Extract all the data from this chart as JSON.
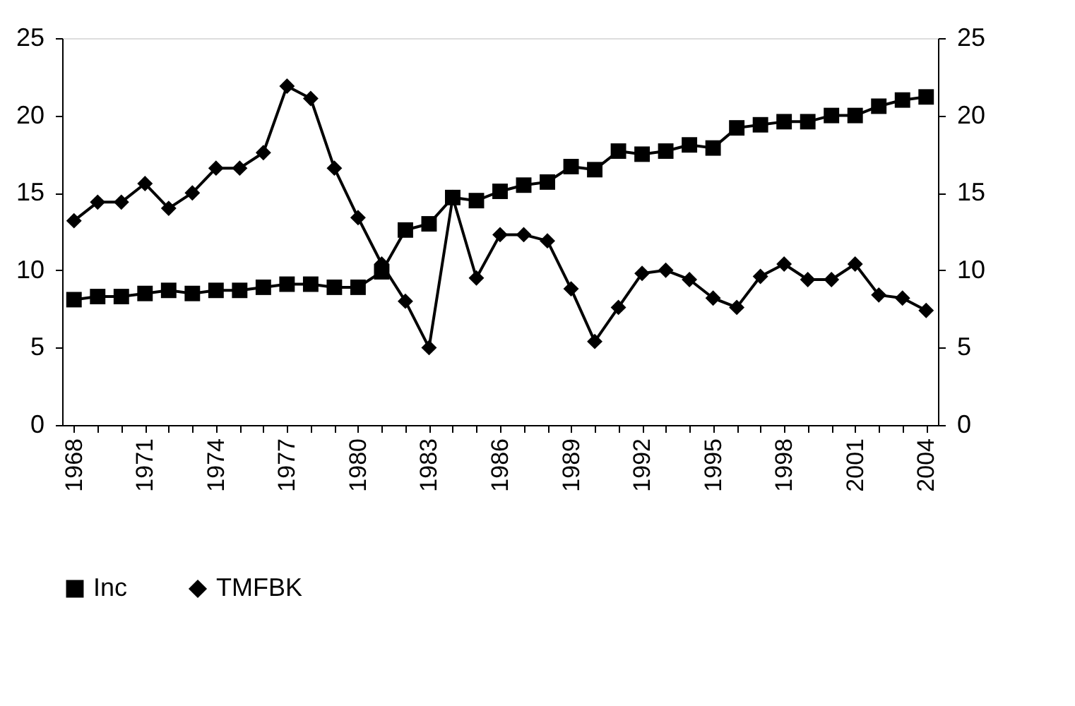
{
  "chart_data": {
    "type": "line",
    "x": [
      1968,
      1969,
      1970,
      1971,
      1972,
      1973,
      1974,
      1975,
      1976,
      1977,
      1978,
      1979,
      1980,
      1981,
      1982,
      1983,
      1984,
      1985,
      1986,
      1987,
      1988,
      1989,
      1990,
      1991,
      1992,
      1993,
      1994,
      1995,
      1996,
      1997,
      1998,
      1999,
      2000,
      2001,
      2002,
      2003,
      2004
    ],
    "series": [
      {
        "name": "Inc",
        "color": "#000000",
        "marker": "square",
        "values": [
          8.1,
          8.3,
          8.3,
          8.5,
          8.7,
          8.5,
          8.7,
          8.7,
          8.9,
          9.1,
          9.1,
          8.9,
          8.9,
          9.9,
          12.6,
          13.0,
          14.7,
          14.5,
          15.1,
          15.5,
          15.7,
          16.7,
          16.5,
          17.7,
          17.5,
          17.7,
          18.1,
          17.9,
          19.2,
          19.4,
          19.6,
          19.6,
          20.0,
          20.0,
          20.6,
          21.0,
          21.2
        ]
      },
      {
        "name": "TMFBK",
        "color": "#000000",
        "marker": "diamond",
        "values": [
          13.2,
          14.4,
          14.4,
          15.6,
          14.0,
          15.0,
          16.6,
          16.6,
          17.6,
          21.9,
          21.1,
          16.6,
          13.4,
          10.4,
          8.0,
          5.0,
          14.7,
          9.5,
          12.3,
          12.3,
          11.9,
          8.8,
          5.4,
          7.6,
          9.8,
          10.0,
          9.4,
          8.2,
          7.6,
          9.6,
          10.4,
          9.4,
          9.4,
          10.4,
          8.4,
          8.2,
          7.4
        ]
      }
    ],
    "xlim": [
      1967.5,
      2004.5
    ],
    "xticks": [
      1968,
      {
        "value": 1969,
        "label": null
      },
      {
        "value": 1970,
        "label": null
      },
      1971,
      {
        "value": 1972,
        "label": null
      },
      {
        "value": 1973,
        "label": null
      },
      1974,
      {
        "value": 1975,
        "label": null
      },
      {
        "value": 1976,
        "label": null
      },
      1977,
      {
        "value": 1978,
        "label": null
      },
      {
        "value": 1979,
        "label": null
      },
      1980,
      {
        "value": 1981,
        "label": null
      },
      {
        "value": 1982,
        "label": null
      },
      1983,
      {
        "value": 1984,
        "label": null
      },
      {
        "value": 1985,
        "label": null
      },
      1986,
      {
        "value": 1987,
        "label": null
      },
      {
        "value": 1988,
        "label": null
      },
      1989,
      {
        "value": 1990,
        "label": null
      },
      {
        "value": 1991,
        "label": null
      },
      1992,
      {
        "value": 1993,
        "label": null
      },
      {
        "value": 1994,
        "label": null
      },
      1995,
      {
        "value": 1996,
        "label": null
      },
      {
        "value": 1997,
        "label": null
      },
      1998,
      {
        "value": 1999,
        "label": null
      },
      {
        "value": 2000,
        "label": null
      },
      2001,
      {
        "value": 2002,
        "label": null
      },
      {
        "value": 2003,
        "label": null
      },
      2004
    ],
    "ylim": [
      0,
      25
    ],
    "yticks": [
      0,
      5,
      10,
      15,
      20,
      25
    ],
    "y2lim": [
      0,
      25
    ],
    "y2ticks": [
      0,
      5,
      10,
      15,
      20,
      25
    ],
    "grid": false,
    "legend": "bottom",
    "line_style": "solid"
  }
}
